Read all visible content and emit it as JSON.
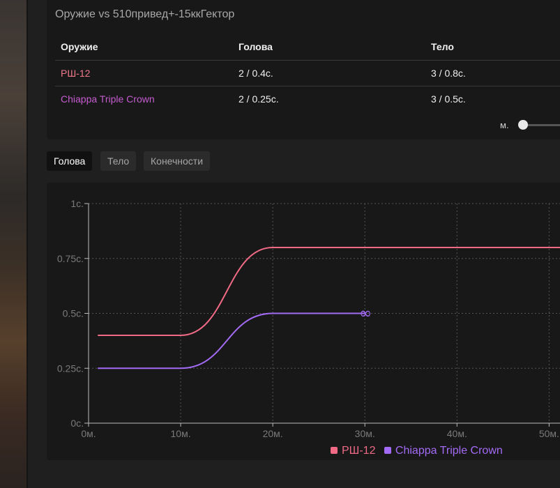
{
  "compare": {
    "title": "Оружие vs 510привед+-15ккГектор",
    "headers": [
      "Оружие",
      "Голова",
      "Тело"
    ],
    "rows": [
      {
        "weapon": "РШ-12",
        "color": "#f07a8c",
        "head": "2 / 0.4с.",
        "body": "3 / 0.8с."
      },
      {
        "weapon": "Chiappa Triple Crown",
        "color": "#c55ccf",
        "head": "2 / 0.25с.",
        "body": "3 / 0.5с."
      }
    ],
    "slider_label": "м.",
    "slider_value": 0
  },
  "tabs": [
    {
      "label": "Голова",
      "active": true
    },
    {
      "label": "Тело",
      "active": false
    },
    {
      "label": "Конечности",
      "active": false
    }
  ],
  "chart_data": {
    "type": "line",
    "title": "",
    "xlabel": "",
    "ylabel": "",
    "xlim": [
      0,
      53
    ],
    "ylim": [
      0,
      1
    ],
    "x_ticks": [
      0,
      10,
      20,
      30,
      40,
      50
    ],
    "x_tick_labels": [
      "0м.",
      "10м.",
      "20м.",
      "30м.",
      "40м.",
      "50м."
    ],
    "y_ticks": [
      0,
      0.25,
      0.5,
      0.75,
      1
    ],
    "y_tick_labels": [
      "0с.",
      "0.25с.",
      "0.5с.",
      "0.75с.",
      "1с."
    ],
    "grid": true,
    "legend_position": "bottom",
    "series": [
      {
        "name": "РШ-12",
        "color": "#f06a86",
        "points": [
          [
            1,
            0.4
          ],
          [
            10,
            0.4
          ],
          [
            20,
            0.8
          ],
          [
            53,
            0.8
          ]
        ],
        "end_marker": ""
      },
      {
        "name": "Chiappa Triple Crown",
        "color": "#a36bf5",
        "points": [
          [
            1,
            0.25
          ],
          [
            10,
            0.25
          ],
          [
            20,
            0.5
          ],
          [
            30,
            0.5
          ]
        ],
        "end_marker": "∞"
      }
    ]
  }
}
